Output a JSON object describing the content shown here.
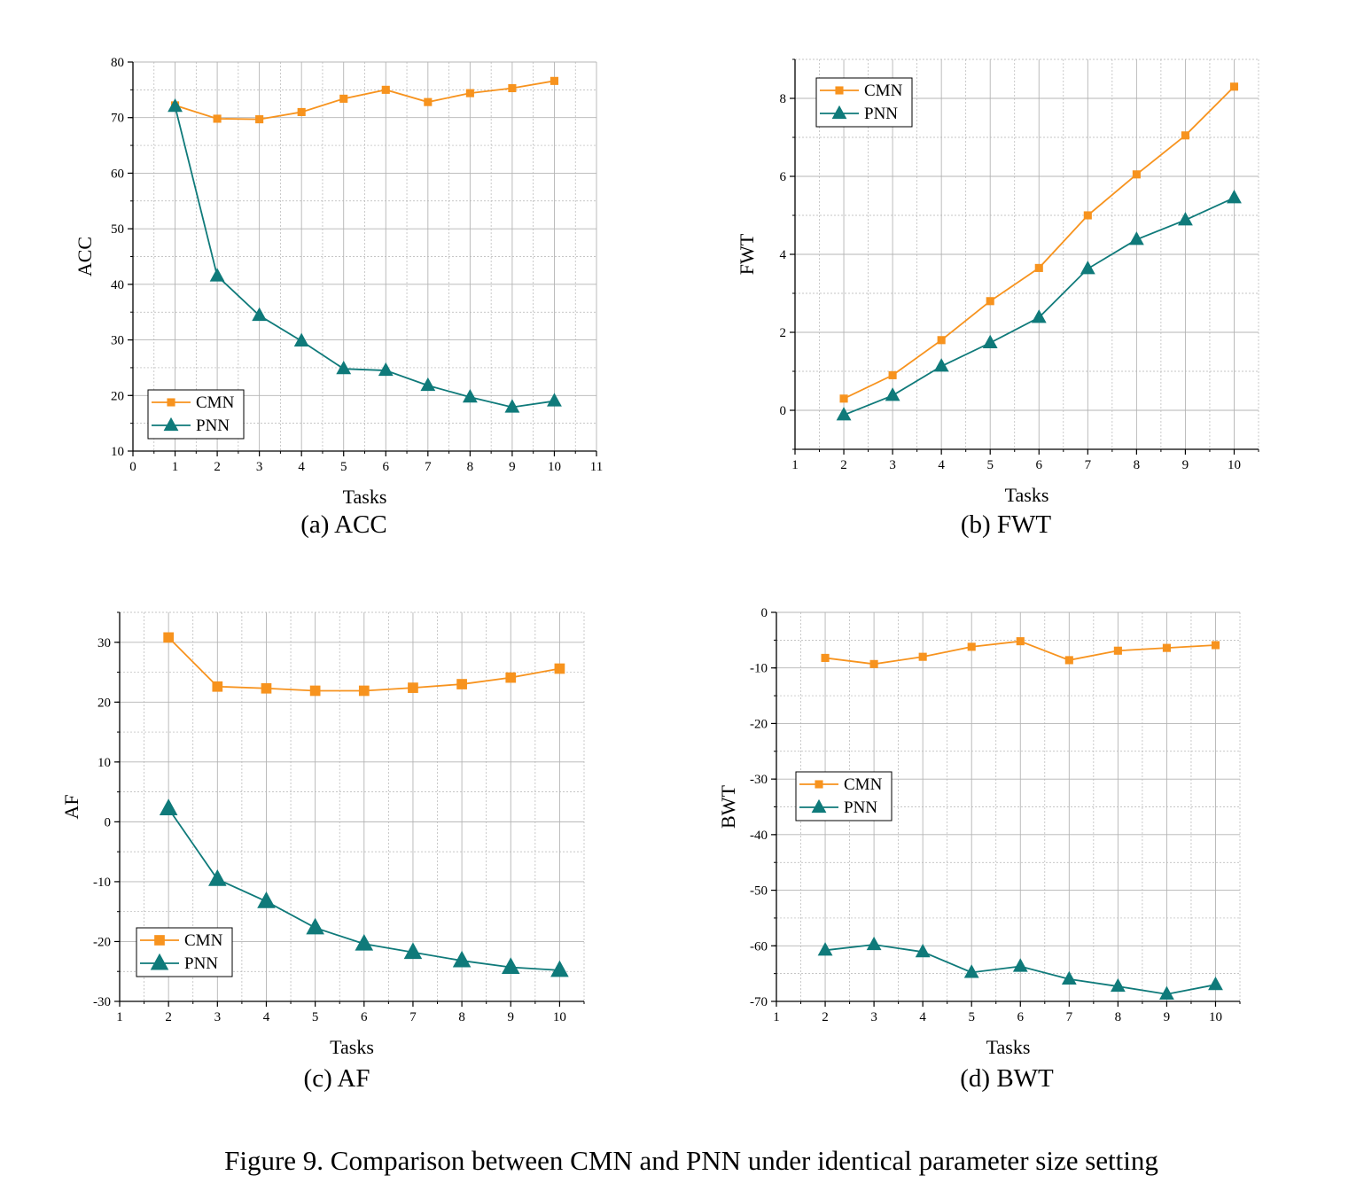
{
  "figure_caption": "Figure 9. Comparison between CMN and PNN under identical parameter size setting",
  "colors": {
    "CMN": "#f7931e",
    "PNN": "#0f7a7a",
    "grid": "#b4b4b4"
  },
  "chart_data": [
    {
      "type": "line",
      "caption": "(a) ACC",
      "xlabel": "Tasks",
      "ylabel": "ACC",
      "xlim": [
        0,
        11
      ],
      "ylim": [
        10,
        80
      ],
      "xticks": [
        0,
        1,
        2,
        3,
        4,
        5,
        6,
        7,
        8,
        9,
        10,
        11
      ],
      "yticks": [
        10,
        20,
        30,
        40,
        50,
        60,
        70,
        80
      ],
      "grid": true,
      "legend_position": "bottom-left",
      "series": [
        {
          "name": "CMN",
          "marker": "square",
          "x": [
            1,
            2,
            3,
            4,
            5,
            6,
            7,
            8,
            9,
            10
          ],
          "y": [
            72.2,
            69.8,
            69.7,
            71.0,
            73.4,
            75.0,
            72.8,
            74.4,
            75.3,
            76.6
          ]
        },
        {
          "name": "PNN",
          "marker": "triangle",
          "x": [
            1,
            2,
            3,
            4,
            5,
            6,
            7,
            8,
            9,
            10
          ],
          "y": [
            72.0,
            41.5,
            34.4,
            29.8,
            24.8,
            24.5,
            21.8,
            19.7,
            17.9,
            19.0
          ]
        }
      ]
    },
    {
      "type": "line",
      "caption": "(b) FWT",
      "xlabel": "Tasks",
      "ylabel": "FWT",
      "xlim": [
        1,
        10.5
      ],
      "ylim": [
        -1,
        9
      ],
      "xticks": [
        1,
        2,
        3,
        4,
        5,
        6,
        7,
        8,
        9,
        10
      ],
      "yticks": [
        0,
        2,
        4,
        6,
        8
      ],
      "grid": true,
      "legend_position": "top-left",
      "series": [
        {
          "name": "CMN",
          "marker": "square",
          "x": [
            2,
            3,
            4,
            5,
            6,
            7,
            8,
            9,
            10
          ],
          "y": [
            0.3,
            0.9,
            1.8,
            2.8,
            3.65,
            5.0,
            6.05,
            7.05,
            8.3
          ]
        },
        {
          "name": "PNN",
          "marker": "triangle",
          "x": [
            2,
            3,
            4,
            5,
            6,
            7,
            8,
            9,
            10
          ],
          "y": [
            -0.12,
            0.38,
            1.13,
            1.73,
            2.38,
            3.63,
            4.38,
            4.88,
            5.45
          ]
        }
      ]
    },
    {
      "type": "line",
      "caption": "(c) AF",
      "xlabel": "Tasks",
      "ylabel": "AF",
      "xlim": [
        1,
        10.5
      ],
      "ylim": [
        -30,
        35
      ],
      "xticks": [
        1,
        2,
        3,
        4,
        5,
        6,
        7,
        8,
        9,
        10
      ],
      "yticks": [
        -30,
        -20,
        -10,
        0,
        10,
        20,
        30
      ],
      "grid": true,
      "legend_position": "bottom-left",
      "series": [
        {
          "name": "CMN",
          "marker": "square",
          "x": [
            2,
            3,
            4,
            5,
            6,
            7,
            8,
            9,
            10
          ],
          "y": [
            30.8,
            22.6,
            22.3,
            21.9,
            21.9,
            22.4,
            23.0,
            24.1,
            25.6
          ]
        },
        {
          "name": "PNN",
          "marker": "triangle",
          "x": [
            2,
            3,
            4,
            5,
            6,
            7,
            8,
            9,
            10
          ],
          "y": [
            2.2,
            -9.6,
            -13.3,
            -17.7,
            -20.4,
            -21.8,
            -23.2,
            -24.3,
            -24.8
          ]
        }
      ]
    },
    {
      "type": "line",
      "caption": "(d) BWT",
      "xlabel": "Tasks",
      "ylabel": "BWT",
      "xlim": [
        1,
        10.5
      ],
      "ylim": [
        -70,
        0
      ],
      "xticks": [
        1,
        2,
        3,
        4,
        5,
        6,
        7,
        8,
        9,
        10
      ],
      "yticks": [
        -70,
        -60,
        -50,
        -40,
        -30,
        -20,
        -10,
        0
      ],
      "grid": true,
      "legend_position": "middle-left",
      "series": [
        {
          "name": "CMN",
          "marker": "square",
          "x": [
            2,
            3,
            4,
            5,
            6,
            7,
            8,
            9,
            10
          ],
          "y": [
            -8.2,
            -9.3,
            -8.0,
            -6.2,
            -5.2,
            -8.6,
            -6.9,
            -6.4,
            -5.9
          ]
        },
        {
          "name": "PNN",
          "marker": "triangle",
          "x": [
            2,
            3,
            4,
            5,
            6,
            7,
            8,
            9,
            10
          ],
          "y": [
            -60.8,
            -59.8,
            -61.1,
            -64.8,
            -63.7,
            -66.0,
            -67.3,
            -68.7,
            -67.0
          ]
        }
      ]
    }
  ]
}
